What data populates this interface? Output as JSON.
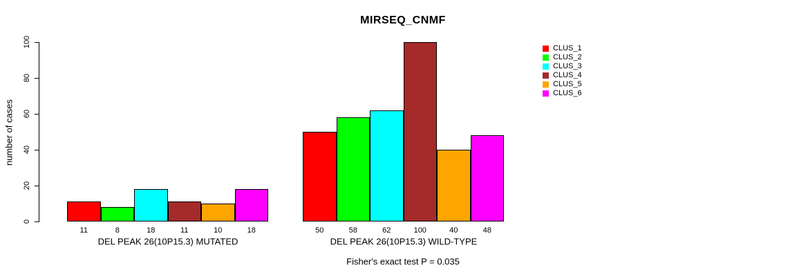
{
  "chart_data": {
    "type": "bar",
    "title": "MIRSEQ_CNMF",
    "ylabel": "number of cases",
    "xlabel": "",
    "ylim": [
      0,
      100
    ],
    "yticks": [
      0,
      20,
      40,
      60,
      80,
      100
    ],
    "grid": false,
    "legend_position": "right",
    "series": [
      {
        "name": "CLUS_1",
        "color": "#FF0000"
      },
      {
        "name": "CLUS_2",
        "color": "#00FF00"
      },
      {
        "name": "CLUS_3",
        "color": "#00FFFF"
      },
      {
        "name": "CLUS_4",
        "color": "#A52A2A"
      },
      {
        "name": "CLUS_5",
        "color": "#FFA500"
      },
      {
        "name": "CLUS_6",
        "color": "#FF00FF"
      }
    ],
    "groups": [
      {
        "label": "DEL PEAK 26(10P15.3) MUTATED",
        "values": [
          11,
          8,
          18,
          11,
          10,
          18
        ]
      },
      {
        "label": "DEL PEAK 26(10P15.3) WILD-TYPE",
        "values": [
          50,
          58,
          62,
          100,
          40,
          48
        ]
      }
    ],
    "annotation": "Fisher's exact test P = 0.035"
  }
}
